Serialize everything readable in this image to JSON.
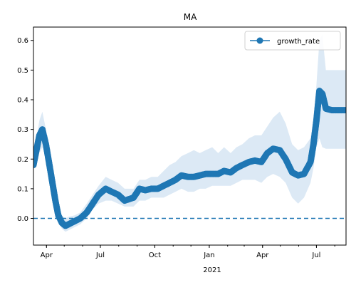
{
  "chart_data": {
    "type": "line",
    "title": "MA",
    "xlabel": "",
    "ylabel": "",
    "x_tick_labels": [
      "Apr",
      "Jul",
      "Oct",
      "Jan",
      "Apr",
      "Jul"
    ],
    "x_tick_dates": [
      "2020-04-01",
      "2020-07-01",
      "2020-10-01",
      "2021-01-01",
      "2021-04-01",
      "2021-07-01"
    ],
    "x_year_label": "2021",
    "xlim": [
      "2020-03-10",
      "2021-08-20"
    ],
    "ylim": [
      -0.09,
      0.645
    ],
    "y_ticks": [
      0.0,
      0.1,
      0.2,
      0.3,
      0.4,
      0.5,
      0.6
    ],
    "y_tick_labels": [
      "0.0",
      "0.1",
      "0.2",
      "0.3",
      "0.4",
      "0.5",
      "0.6"
    ],
    "reference_line": {
      "y": 0.0,
      "style": "dashed"
    },
    "legend": {
      "position": "top-right"
    },
    "series": [
      {
        "name": "growth_rate",
        "marker": "circle",
        "color": "#1f77b4",
        "band_color": "#dce9f5",
        "x": [
          "2020-03-10",
          "2020-03-15",
          "2020-03-20",
          "2020-03-25",
          "2020-03-31",
          "2020-04-06",
          "2020-04-11",
          "2020-04-16",
          "2020-04-21",
          "2020-04-27",
          "2020-05-03",
          "2020-05-08",
          "2020-05-18",
          "2020-05-28",
          "2020-06-08",
          "2020-06-18",
          "2020-06-28",
          "2020-07-10",
          "2020-07-20",
          "2020-07-31",
          "2020-08-11",
          "2020-08-26",
          "2020-09-05",
          "2020-09-15",
          "2020-09-25",
          "2020-10-06",
          "2020-10-16",
          "2020-10-26",
          "2020-11-05",
          "2020-11-15",
          "2020-11-26",
          "2020-12-06",
          "2020-12-16",
          "2020-12-26",
          "2021-01-06",
          "2021-01-16",
          "2021-01-26",
          "2021-02-06",
          "2021-02-16",
          "2021-02-26",
          "2021-03-09",
          "2021-03-19",
          "2021-03-30",
          "2021-04-09",
          "2021-04-19",
          "2021-04-30",
          "2021-05-10",
          "2021-05-21",
          "2021-05-31",
          "2021-06-10",
          "2021-06-21",
          "2021-06-26",
          "2021-07-01",
          "2021-07-06",
          "2021-07-11",
          "2021-07-17",
          "2021-07-27",
          "2021-08-06",
          "2021-08-20"
        ],
        "y": [
          0.18,
          0.23,
          0.28,
          0.3,
          0.25,
          0.18,
          0.12,
          0.06,
          0.01,
          -0.015,
          -0.025,
          -0.02,
          -0.01,
          0.0,
          0.02,
          0.05,
          0.08,
          0.1,
          0.09,
          0.08,
          0.06,
          0.07,
          0.1,
          0.095,
          0.1,
          0.1,
          0.11,
          0.12,
          0.13,
          0.145,
          0.14,
          0.14,
          0.145,
          0.15,
          0.15,
          0.15,
          0.16,
          0.155,
          0.17,
          0.18,
          0.19,
          0.195,
          0.19,
          0.22,
          0.235,
          0.23,
          0.2,
          0.155,
          0.145,
          0.15,
          0.19,
          0.25,
          0.33,
          0.43,
          0.42,
          0.37,
          0.365,
          0.365,
          0.365
        ],
        "lower": [
          0.16,
          0.19,
          0.22,
          0.24,
          0.2,
          0.14,
          0.09,
          0.04,
          -0.01,
          -0.035,
          -0.045,
          -0.04,
          -0.03,
          -0.02,
          0.0,
          0.03,
          0.05,
          0.06,
          0.06,
          0.05,
          0.04,
          0.04,
          0.06,
          0.06,
          0.07,
          0.07,
          0.07,
          0.08,
          0.09,
          0.1,
          0.09,
          0.09,
          0.1,
          0.1,
          0.11,
          0.11,
          0.11,
          0.11,
          0.12,
          0.13,
          0.13,
          0.13,
          0.12,
          0.14,
          0.15,
          0.14,
          0.12,
          0.07,
          0.05,
          0.07,
          0.12,
          0.17,
          0.24,
          0.27,
          0.24,
          0.235,
          0.235,
          0.235,
          0.235
        ],
        "upper": [
          0.21,
          0.27,
          0.33,
          0.36,
          0.3,
          0.23,
          0.16,
          0.09,
          0.04,
          0.01,
          0.0,
          0.005,
          0.01,
          0.02,
          0.05,
          0.08,
          0.11,
          0.14,
          0.13,
          0.12,
          0.1,
          0.1,
          0.13,
          0.13,
          0.14,
          0.14,
          0.16,
          0.18,
          0.19,
          0.21,
          0.22,
          0.23,
          0.22,
          0.23,
          0.24,
          0.22,
          0.24,
          0.22,
          0.24,
          0.25,
          0.27,
          0.28,
          0.28,
          0.31,
          0.34,
          0.36,
          0.32,
          0.25,
          0.23,
          0.24,
          0.27,
          0.34,
          0.45,
          0.6,
          0.62,
          0.5,
          0.5,
          0.5,
          0.5
        ]
      }
    ]
  }
}
